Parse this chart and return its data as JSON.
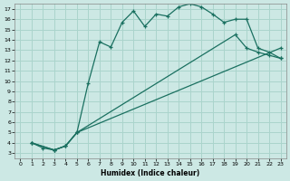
{
  "xlabel": "Humidex (Indice chaleur)",
  "bg_color": "#cce8e4",
  "grid_color": "#aad4cc",
  "line_color": "#1a7060",
  "xlim": [
    -0.5,
    23.5
  ],
  "ylim": [
    2.5,
    17.5
  ],
  "xticks": [
    0,
    1,
    2,
    3,
    4,
    5,
    6,
    7,
    8,
    9,
    10,
    11,
    12,
    13,
    14,
    15,
    16,
    17,
    18,
    19,
    20,
    21,
    22,
    23
  ],
  "yticks": [
    3,
    4,
    5,
    6,
    7,
    8,
    9,
    10,
    11,
    12,
    13,
    14,
    15,
    16,
    17
  ],
  "line1_x": [
    1,
    2,
    3,
    4,
    5,
    6,
    7,
    8,
    9,
    10,
    11,
    12,
    13,
    14,
    15,
    16,
    17,
    18,
    19,
    20,
    21,
    22,
    23
  ],
  "line1_y": [
    4.0,
    3.5,
    3.3,
    3.7,
    5.0,
    9.8,
    13.8,
    13.3,
    15.7,
    16.8,
    15.3,
    16.5,
    16.3,
    17.2,
    17.5,
    17.2,
    16.5,
    15.7,
    16.0,
    16.0,
    13.2,
    12.8,
    12.2
  ],
  "line2_x": [
    1,
    3,
    4,
    5,
    23
  ],
  "line2_y": [
    4.0,
    3.3,
    3.7,
    5.0,
    13.2
  ],
  "line3_x": [
    1,
    3,
    4,
    5,
    19,
    20,
    21,
    22,
    23
  ],
  "line3_y": [
    4.0,
    3.3,
    3.7,
    5.0,
    14.5,
    13.2,
    12.8,
    12.5,
    12.2
  ]
}
